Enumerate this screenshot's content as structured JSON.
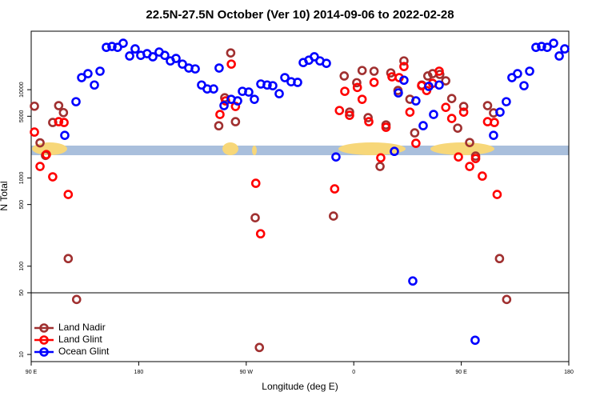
{
  "chart_data": {
    "type": "scatter",
    "title": "22.5N-27.5N October (Ver 10)   2014-09-06 to 2022-02-28",
    "x_label": "Longitude (deg E)",
    "y_label": "N Total",
    "xlim": [
      90,
      540
    ],
    "ylim": [
      8.3,
      46000
    ],
    "yscale": "log",
    "legend": "lower left",
    "hline": 50,
    "xticks": [
      {
        "value": 90,
        "label": "90 E"
      },
      180,
      {
        "value": 270,
        "label": "90 W"
      },
      {
        "value": 360,
        "label": "0"
      },
      {
        "value": 450,
        "label": "90 E"
      },
      {
        "value": 540,
        "label": "180"
      }
    ],
    "yticks": [
      10,
      50,
      100,
      500,
      1000,
      5000,
      10000
    ],
    "series": [
      {
        "name": "Land Nadir",
        "color": "#a03030",
        "x": [
          92.7,
          97.4,
          102,
          108,
          113,
          117,
          121,
          128,
          257,
          252,
          261,
          247,
          277.5,
          281,
          343,
          352,
          356.5,
          362.5,
          367,
          372,
          377,
          382,
          387,
          391,
          397,
          402,
          407,
          411,
          417,
          422,
          426,
          432,
          437,
          442,
          447,
          452,
          457,
          462,
          472,
          477,
          482,
          488
        ],
        "values": [
          6500,
          2500,
          1800,
          4250,
          6600,
          5500,
          122,
          42,
          26100,
          8100,
          4340,
          3900,
          354,
          12,
          370,
          14300,
          5570,
          12000,
          16500,
          4820,
          16200,
          1350,
          3990,
          15500,
          9800,
          21200,
          7800,
          3240,
          11300,
          14300,
          15200,
          14900,
          12600,
          7940,
          3670,
          6460,
          2520,
          1770,
          6600,
          5460,
          122,
          42
        ]
      },
      {
        "name": "Land Glint",
        "color": "#ff0000",
        "x": [
          92.7,
          97.4,
          102.7,
          108,
          113,
          117.5,
          121,
          248,
          252.7,
          257.5,
          261,
          278,
          282,
          344,
          348,
          352.5,
          356.5,
          363,
          367,
          372.6,
          377,
          382.6,
          387,
          392,
          398,
          402,
          407,
          412,
          416.8,
          421,
          426,
          431.5,
          437,
          442,
          447.6,
          452,
          457,
          462,
          467.6,
          472,
          477.7,
          480
        ],
        "values": [
          3310,
          1350,
          1840,
          1030,
          4340,
          4250,
          650,
          5240,
          7470,
          19500,
          6460,
          870,
          233,
          752,
          5810,
          9590,
          5130,
          10600,
          7780,
          4340,
          12100,
          1690,
          3750,
          14000,
          13700,
          18300,
          5570,
          2470,
          11100,
          9790,
          11800,
          16200,
          6310,
          4720,
          1730,
          5570,
          1350,
          1660,
          1050,
          4340,
          4250,
          650
        ]
      },
      {
        "name": "Ocean Glint",
        "color": "#0000ff",
        "x": [
          118.1,
          127.5,
          132.2,
          137.5,
          142.9,
          147.6,
          152.9,
          157.6,
          162.3,
          167,
          172.4,
          177,
          181.7,
          187,
          191.8,
          197.1,
          201.8,
          206.5,
          211.2,
          216.6,
          221.9,
          227.3,
          232.6,
          237.3,
          242.7,
          247.3,
          251.4,
          257.4,
          262.8,
          266.8,
          272.1,
          276.8,
          282.2,
          287.5,
          292.2,
          297.6,
          302.3,
          307.6,
          313,
          317.7,
          322.4,
          327,
          331.7,
          337.1,
          345.1,
          394,
          397.3,
          402,
          409.4,
          412,
          418.1,
          422.8,
          426.8,
          431.5,
          461.6,
          477,
          482.4,
          487.7,
          492.4,
          497.1,
          502.5,
          507.2,
          512.5,
          517.2,
          521.9,
          527.3,
          532,
          536.6
        ],
        "values": [
          3040,
          7310,
          13700,
          15200,
          11300,
          16200,
          30200,
          30900,
          30200,
          33600,
          24100,
          29000,
          24500,
          25600,
          23600,
          26700,
          24500,
          21200,
          22600,
          19500,
          17600,
          17200,
          11300,
          10200,
          10200,
          17600,
          6600,
          7780,
          7470,
          9590,
          9400,
          7780,
          11600,
          11300,
          11100,
          9010,
          13700,
          12300,
          12100,
          20300,
          21600,
          23600,
          21200,
          19900,
          1730,
          2000,
          9200,
          12800,
          68,
          7470,
          3910,
          10900,
          5240,
          11300,
          14.5,
          3040,
          5570,
          7310,
          13700,
          15200,
          11100,
          16200,
          30200,
          30900,
          30200,
          33600,
          24100,
          29000
        ]
      }
    ]
  }
}
